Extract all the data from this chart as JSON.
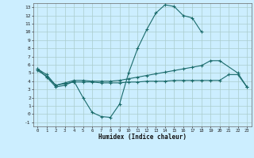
{
  "xlabel": "Humidex (Indice chaleur)",
  "xlim": [
    -0.5,
    23.5
  ],
  "ylim": [
    -1.5,
    13.5
  ],
  "xtick_labels": [
    "0",
    "1",
    "2",
    "3",
    "4",
    "5",
    "6",
    "7",
    "8",
    "9",
    "10",
    "11",
    "12",
    "13",
    "14",
    "15",
    "16",
    "17",
    "18",
    "19",
    "20",
    "21",
    "22",
    "23"
  ],
  "xtick_vals": [
    0,
    1,
    2,
    3,
    4,
    5,
    6,
    7,
    8,
    9,
    10,
    11,
    12,
    13,
    14,
    15,
    16,
    17,
    18,
    19,
    20,
    21,
    22,
    23
  ],
  "ytick_labels": [
    "-1",
    "0",
    "1",
    "2",
    "3",
    "4",
    "5",
    "6",
    "7",
    "8",
    "9",
    "10",
    "11",
    "12",
    "13"
  ],
  "ytick_vals": [
    -1,
    0,
    1,
    2,
    3,
    4,
    5,
    6,
    7,
    8,
    9,
    10,
    11,
    12,
    13
  ],
  "bg_color": "#cceeff",
  "grid_color": "#aacccc",
  "line_color": "#1a6b6b",
  "line1_x": [
    0,
    1,
    2,
    3,
    4,
    5,
    6,
    7,
    8,
    9,
    10,
    11,
    12,
    13,
    14,
    15,
    16,
    17,
    18
  ],
  "line1_y": [
    5.5,
    4.5,
    3.3,
    3.5,
    4.0,
    2.0,
    0.2,
    -0.3,
    -0.4,
    1.2,
    5.0,
    8.0,
    10.3,
    12.3,
    13.3,
    13.1,
    12.0,
    11.7,
    10.0
  ],
  "line2_x": [
    0,
    1,
    2,
    3,
    4,
    5,
    6,
    7,
    8,
    9,
    10,
    11,
    12,
    13,
    14,
    15,
    16,
    17,
    18,
    19,
    20,
    22,
    23
  ],
  "line2_y": [
    5.5,
    4.8,
    3.5,
    3.8,
    4.1,
    4.1,
    4.0,
    4.0,
    4.0,
    4.1,
    4.3,
    4.5,
    4.7,
    4.9,
    5.1,
    5.3,
    5.5,
    5.7,
    5.9,
    6.5,
    6.5,
    5.0,
    3.3
  ],
  "line3_x": [
    0,
    1,
    2,
    3,
    4,
    5,
    6,
    7,
    8,
    9,
    10,
    11,
    12,
    13,
    14,
    15,
    16,
    17,
    18,
    19,
    20,
    21,
    22,
    23
  ],
  "line3_y": [
    5.3,
    4.6,
    3.5,
    3.7,
    3.9,
    3.9,
    3.9,
    3.8,
    3.8,
    3.8,
    3.9,
    3.9,
    4.0,
    4.0,
    4.0,
    4.1,
    4.1,
    4.1,
    4.1,
    4.1,
    4.1,
    4.8,
    4.8,
    3.3
  ]
}
